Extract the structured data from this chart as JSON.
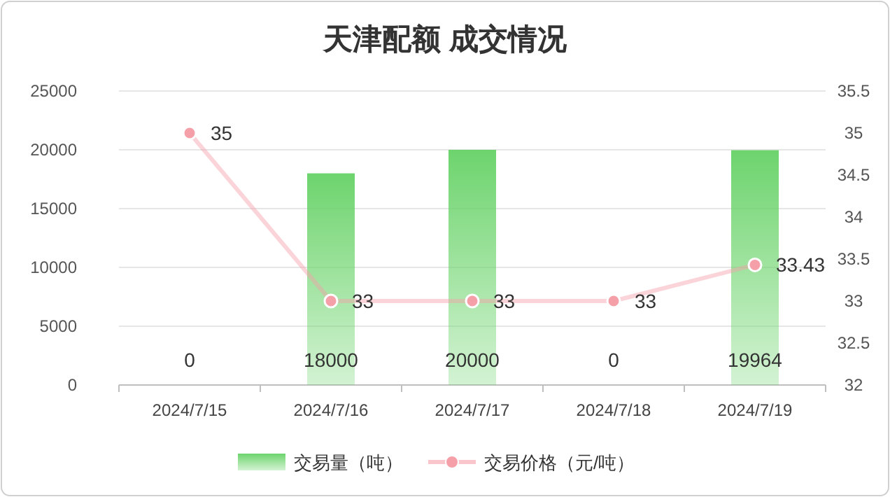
{
  "chart_data": {
    "type": "bar",
    "title": "天津配额 成交情况",
    "categories": [
      "2024/7/15",
      "2024/7/16",
      "2024/7/17",
      "2024/7/18",
      "2024/7/19"
    ],
    "series": [
      {
        "name": "交易量（吨）",
        "color": "#6dd46d",
        "values": [
          0,
          18000,
          20000,
          0,
          19964
        ]
      },
      {
        "name": "交易价格（元/吨）",
        "type": "line",
        "axis": "y2",
        "color": "#f5a0a8",
        "marker": "circle",
        "values": [
          35,
          33,
          33,
          33,
          33.43
        ]
      }
    ],
    "ylim": [
      0,
      25000
    ],
    "yticks": [
      0,
      5000,
      10000,
      15000,
      20000,
      25000
    ],
    "y2lim": [
      32,
      35.5
    ],
    "y2ticks": [
      32,
      32.5,
      33,
      33.5,
      34,
      34.5,
      35,
      35.5
    ],
    "grid": "y",
    "legend": "bottom",
    "data_labels": true
  }
}
